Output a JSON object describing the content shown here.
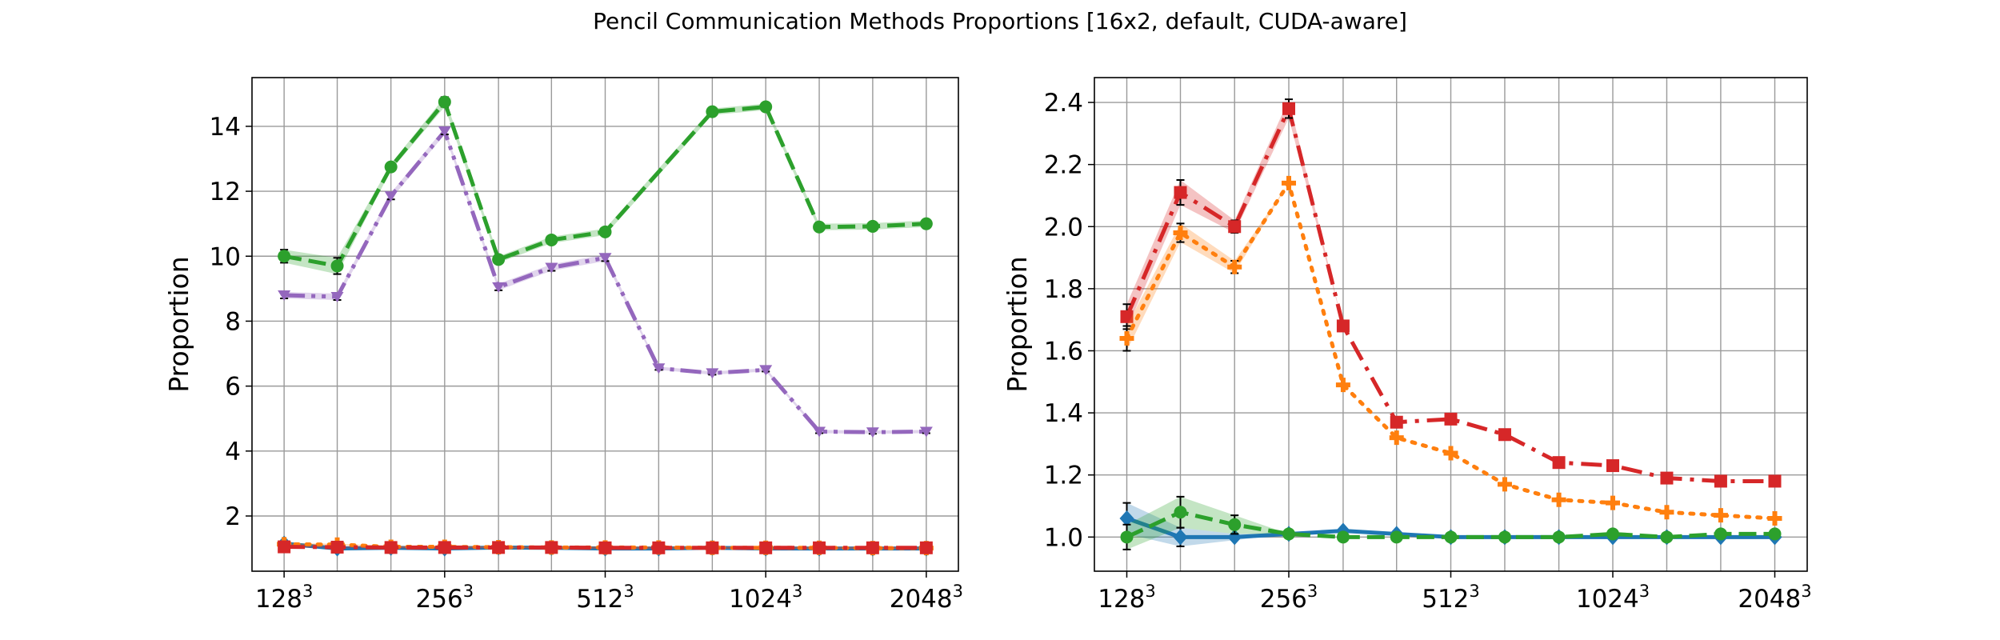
{
  "figure": {
    "title": "Pencil Communication Methods Proportions [16x2, default, CUDA-aware]"
  },
  "chart_data": [
    {
      "type": "line",
      "panel": "left",
      "title": "",
      "xlabel": "",
      "ylabel": "Proportion",
      "x": [
        128,
        161,
        203,
        256,
        323,
        406,
        512,
        645,
        813,
        1024,
        1290,
        1625,
        2048
      ],
      "x_ticks": [
        {
          "base": "128",
          "exp": "3"
        },
        {
          "base": "256",
          "exp": "3"
        },
        {
          "base": "512",
          "exp": "3"
        },
        {
          "base": "1024",
          "exp": "3"
        },
        {
          "base": "2048",
          "exp": "3"
        }
      ],
      "x_scale": "log",
      "y_ticks": [
        "2",
        "4",
        "6",
        "8",
        "10",
        "12",
        "14"
      ],
      "ylim": [
        0.3,
        15.5
      ],
      "grid": true,
      "series": [
        {
          "color": "#2ca02c",
          "marker": "circle",
          "dash": "dashed",
          "values": [
            10.0,
            9.7,
            12.75,
            14.75,
            9.9,
            10.5,
            10.75,
            null,
            14.45,
            14.6,
            10.9,
            10.92,
            11.0
          ],
          "band": [
            0.2,
            0.25,
            0.1,
            0.15,
            0.1,
            0.1,
            0.1,
            null,
            0.1,
            0.1,
            0.1,
            0.1,
            0.1
          ]
        },
        {
          "color": "#9467bd",
          "marker": "triangle-down",
          "dash": "dashdotdot",
          "values": [
            8.8,
            8.75,
            11.85,
            13.85,
            9.05,
            9.65,
            9.95,
            6.55,
            6.4,
            6.5,
            4.6,
            4.58,
            4.6
          ],
          "band": [
            0.1,
            0.1,
            0.1,
            0.1,
            0.1,
            0.1,
            0.1,
            0.05,
            0.05,
            0.05,
            0.05,
            0.05,
            0.05
          ]
        },
        {
          "color": "#1f77b4",
          "marker": "diamond",
          "dash": "solid",
          "values": [
            1.15,
            1.0,
            1.02,
            1.0,
            1.03,
            1.02,
            1.0,
            1.0,
            1.02,
            1.0,
            1.0,
            1.0,
            1.0
          ],
          "band": [
            0.05,
            0.03,
            0.03,
            0.03,
            0.03,
            0.03,
            0.03,
            0.03,
            0.03,
            0.03,
            0.03,
            0.03,
            0.03
          ]
        },
        {
          "color": "#ff7f0e",
          "marker": "plus",
          "dash": "dotted",
          "values": [
            1.13,
            1.12,
            1.05,
            1.05,
            1.04,
            1.03,
            1.03,
            1.03,
            1.02,
            1.02,
            1.02,
            1.01,
            1.01
          ],
          "band": [
            0.03,
            0.03,
            0.03,
            0.03,
            0.03,
            0.03,
            0.03,
            0.03,
            0.03,
            0.03,
            0.03,
            0.03,
            0.03
          ]
        },
        {
          "color": "#d62728",
          "marker": "square",
          "dash": "dashdot",
          "values": [
            1.05,
            1.04,
            1.03,
            1.03,
            1.03,
            1.03,
            1.02,
            1.02,
            1.02,
            1.02,
            1.02,
            1.02,
            1.02
          ],
          "band": [
            0.03,
            0.03,
            0.03,
            0.03,
            0.03,
            0.03,
            0.03,
            0.03,
            0.03,
            0.03,
            0.03,
            0.03,
            0.03
          ]
        }
      ]
    },
    {
      "type": "line",
      "panel": "right",
      "title": "",
      "xlabel": "",
      "ylabel": "Proportion",
      "x": [
        128,
        161,
        203,
        256,
        323,
        406,
        512,
        645,
        813,
        1024,
        1290,
        1625,
        2048
      ],
      "x_ticks": [
        {
          "base": "128",
          "exp": "3"
        },
        {
          "base": "256",
          "exp": "3"
        },
        {
          "base": "512",
          "exp": "3"
        },
        {
          "base": "1024",
          "exp": "3"
        },
        {
          "base": "2048",
          "exp": "3"
        }
      ],
      "x_scale": "log",
      "y_ticks": [
        "1.0",
        "1.2",
        "1.4",
        "1.6",
        "1.8",
        "2.0",
        "2.2",
        "2.4"
      ],
      "ylim": [
        0.89,
        2.48
      ],
      "grid": true,
      "series": [
        {
          "color": "#d62728",
          "marker": "square",
          "dash": "dashdot",
          "values": [
            1.71,
            2.11,
            2.0,
            2.38,
            1.68,
            1.37,
            1.38,
            1.33,
            1.24,
            1.23,
            1.19,
            1.18,
            1.18
          ],
          "band": [
            0.04,
            0.04,
            0.02,
            0.03,
            0.0,
            0.0,
            0.0,
            0.0,
            0.0,
            0.0,
            0.0,
            0.0,
            0.0
          ]
        },
        {
          "color": "#ff7f0e",
          "marker": "plus",
          "dash": "dotted",
          "values": [
            1.64,
            1.98,
            1.87,
            2.14,
            1.49,
            1.32,
            1.27,
            1.17,
            1.12,
            1.11,
            1.08,
            1.07,
            1.06
          ],
          "band": [
            0.04,
            0.03,
            0.02,
            0.0,
            0.0,
            0.0,
            0.0,
            0.0,
            0.0,
            0.0,
            0.0,
            0.0,
            0.0
          ]
        },
        {
          "color": "#1f77b4",
          "marker": "diamond",
          "dash": "solid",
          "values": [
            1.06,
            1.0,
            1.0,
            1.01,
            1.02,
            1.01,
            1.0,
            1.0,
            1.0,
            1.0,
            1.0,
            1.0,
            1.0
          ],
          "band": [
            0.05,
            0.03,
            0.01,
            0.0,
            0.0,
            0.0,
            0.0,
            0.0,
            0.0,
            0.0,
            0.0,
            0.0,
            0.0
          ]
        },
        {
          "color": "#2ca02c",
          "marker": "circle",
          "dash": "dashed",
          "values": [
            1.0,
            1.08,
            1.04,
            1.01,
            1.0,
            1.0,
            1.0,
            1.0,
            1.0,
            1.01,
            1.0,
            1.01,
            1.01
          ],
          "band": [
            0.04,
            0.05,
            0.03,
            0.0,
            0.0,
            0.0,
            0.0,
            0.0,
            0.0,
            0.0,
            0.0,
            0.0,
            0.0
          ]
        }
      ]
    }
  ]
}
